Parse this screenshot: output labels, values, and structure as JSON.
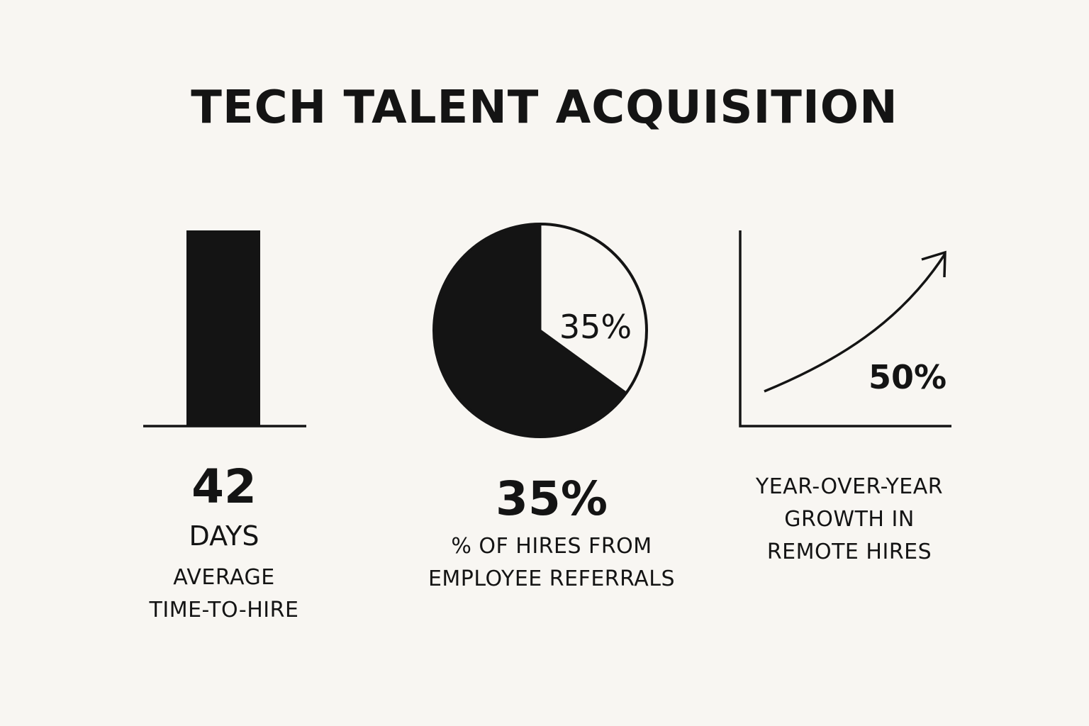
{
  "title": "TECH TALENT ACQUISITION",
  "colors": {
    "background": "#f8f6f2",
    "ink": "#141414"
  },
  "chart_data": [
    {
      "type": "bar",
      "categories": [
        ""
      ],
      "values": [
        42
      ],
      "value_label": "42",
      "unit_label": "DAYS",
      "caption_lines": [
        "AVERAGE",
        "TIME-TO-HIRE"
      ]
    },
    {
      "type": "pie",
      "slices": [
        {
          "label": "35%",
          "value": 35,
          "color": "#f8f6f2"
        },
        {
          "label": "",
          "value": 65,
          "color": "#141414"
        }
      ],
      "value_label": "35%",
      "caption_lines": [
        "% OF HIRES FROM",
        "EMPLOYEE REFERRALS"
      ]
    },
    {
      "type": "line",
      "trend": "rising",
      "arrowhead": true,
      "value_label": "50%",
      "caption_lines": [
        "YEAR-OVER-YEAR",
        "GROWTH IN",
        "REMOTE HIRES"
      ]
    }
  ]
}
